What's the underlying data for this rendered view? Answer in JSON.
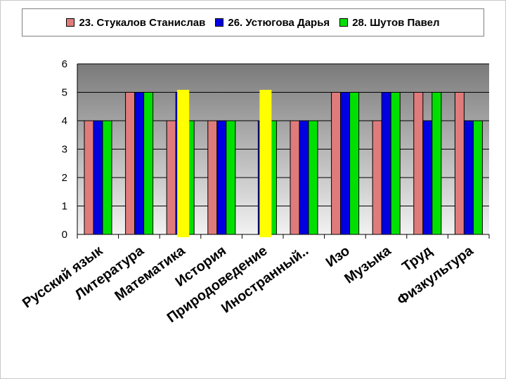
{
  "chart_data": {
    "type": "bar",
    "categories": [
      "Русский язык",
      "Литература",
      "Математика",
      "История",
      "Природоведение",
      "Иностранный..",
      "Изо",
      "Музыка",
      "Труд",
      "Физкультура"
    ],
    "series": [
      {
        "name": "23. Стукалов Станислав",
        "color": "#e07b7b",
        "values": [
          4,
          5,
          4,
          4,
          0,
          4,
          5,
          4,
          5,
          5
        ]
      },
      {
        "name": "26. Устюгова Дарья",
        "color": "#0000e0",
        "values": [
          4,
          5,
          5,
          4,
          4,
          4,
          5,
          5,
          4,
          4
        ]
      },
      {
        "name": "28. Шутов Павел",
        "color": "#00e000",
        "values": [
          4,
          5,
          4,
          4,
          4,
          4,
          5,
          5,
          5,
          4
        ]
      }
    ],
    "ylim": [
      0,
      6
    ],
    "yticks": [
      "0",
      "1",
      "2",
      "3",
      "4",
      "5",
      "6"
    ],
    "grid": true,
    "legend_position": "top",
    "highlights": [
      {
        "category": "Математика",
        "color": "#ffff00"
      },
      {
        "category": "Природоведение",
        "color": "#ffff00"
      }
    ],
    "plot_gradient": [
      "#7a7a7a",
      "#f2f2f2"
    ]
  }
}
